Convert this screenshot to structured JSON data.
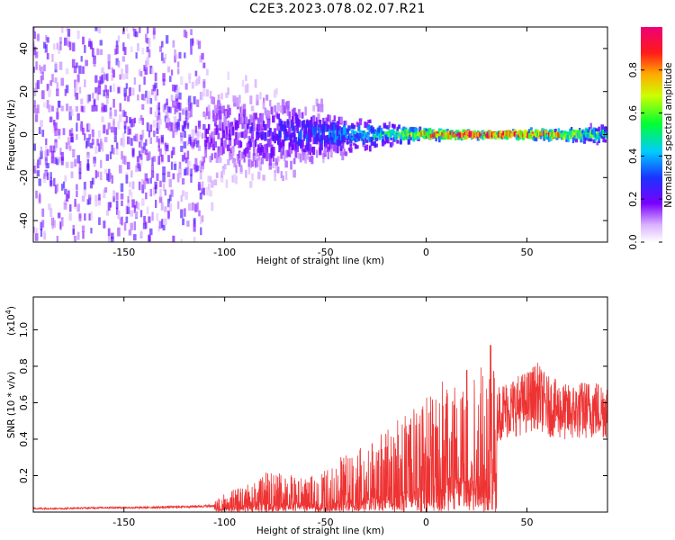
{
  "title": "C2E3.2023.078.02.07.R21",
  "chart_data": [
    {
      "type": "heatmap",
      "xlabel": "Height of straight line (km)",
      "ylabel": "Frequency (Hz)",
      "xlim": [
        -195,
        90
      ],
      "ylim": [
        -50,
        50
      ],
      "x_ticks": [
        -150,
        -100,
        -50,
        0,
        50
      ],
      "x_tick_labels": [
        "-150",
        "-100",
        "-50",
        "0",
        "50"
      ],
      "y_ticks": [
        -40,
        -20,
        0,
        20,
        40
      ],
      "y_tick_labels": [
        "-40",
        "-20",
        "0",
        "20",
        "40"
      ],
      "colorbar": {
        "label": "Normalized spectral amplitude",
        "range": [
          0.0,
          1.0
        ],
        "ticks": [
          0.0,
          0.2,
          0.4,
          0.6,
          0.8
        ],
        "tick_labels": [
          "0.0",
          "0.2",
          "0.4",
          "0.6",
          "0.8"
        ],
        "colormap": "rainbow (white-violet-blue-cyan-green-yellow-red-magenta)"
      },
      "description_points": [
        {
          "x": -150,
          "spread_hz": 50,
          "amplitude": 0.1
        },
        {
          "x": -100,
          "spread_hz": 25,
          "amplitude": 0.15
        },
        {
          "x": -50,
          "spread_hz": 10,
          "amplitude": 0.3
        },
        {
          "x": -20,
          "spread_hz": 4,
          "amplitude": 0.45
        },
        {
          "x": 0,
          "spread_hz": 2,
          "amplitude": 0.7
        },
        {
          "x": 20,
          "spread_hz": 1,
          "amplitude": 0.95
        },
        {
          "x": 50,
          "spread_hz": 1.5,
          "amplitude": 0.85
        },
        {
          "x": 85,
          "spread_hz": 3,
          "amplitude": 0.5
        }
      ],
      "grid": false
    },
    {
      "type": "line",
      "xlabel": "Height of straight line (km)",
      "ylabel": "SNR (10 * v/v)",
      "y_scale_label": "(x10",
      "y_scale_exp": "4",
      "y_scale_close": ")",
      "xlim": [
        -195,
        90
      ],
      "ylim": [
        0,
        1.18
      ],
      "x_ticks": [
        -150,
        -100,
        -50,
        0,
        50
      ],
      "x_tick_labels": [
        "-150",
        "-100",
        "-50",
        "0",
        "50"
      ],
      "y_ticks": [
        0.2,
        0.4,
        0.6,
        0.8,
        1.0
      ],
      "y_tick_labels": [
        "0.2",
        "0.4",
        "0.6",
        "0.8",
        "1.0"
      ],
      "series": [
        {
          "color": "#ee3333",
          "x": [
            -195,
            -180,
            -160,
            -140,
            -120,
            -105,
            -100,
            -90,
            -80,
            -70,
            -60,
            -50,
            -40,
            -30,
            -20,
            -10,
            0,
            5,
            10,
            20,
            30,
            35,
            40,
            50,
            55,
            60,
            70,
            80,
            90
          ],
          "y": [
            0.02,
            0.02,
            0.025,
            0.025,
            0.03,
            0.035,
            0.06,
            0.08,
            0.12,
            0.12,
            0.1,
            0.13,
            0.18,
            0.2,
            0.25,
            0.3,
            0.35,
            0.4,
            0.45,
            0.45,
            0.5,
            0.56,
            0.58,
            0.62,
            0.66,
            0.6,
            0.56,
            0.58,
            0.58
          ]
        }
      ],
      "grid": false
    }
  ]
}
